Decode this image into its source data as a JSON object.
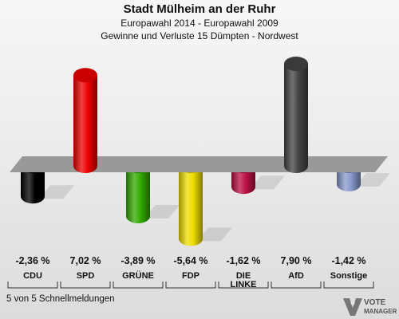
{
  "header": {
    "title": "Stadt Mülheim an der Ruhr",
    "subtitle1": "Europawahl 2014 - Europawahl 2009",
    "subtitle2": "Gewinne und Verluste 15 Dümpten - Nordwest"
  },
  "footer": {
    "text": "5 von 5 Schnellmeldungen"
  },
  "logo": {
    "line1": "VOTE",
    "line2": "MANAGER"
  },
  "chart_data": {
    "type": "bar",
    "title": "Stadt Mülheim an der Ruhr",
    "subtitle": "Europawahl 2014 - Europawahl 2009 / Gewinne und Verluste 15 Dümpten - Nordwest",
    "categories": [
      "CDU",
      "SPD",
      "GRÜNE",
      "FDP",
      "DIE LINKE",
      "AfD",
      "Sonstige"
    ],
    "values": [
      -2.36,
      7.02,
      -3.89,
      -5.64,
      -1.62,
      7.9,
      -1.42
    ],
    "value_labels": [
      "-2,36 %",
      "7,02 %",
      "-3,89 %",
      "-5,64 %",
      "-1,62 %",
      "7,90 %",
      "-1,42 %"
    ],
    "colors": [
      "#000000",
      "#ee0000",
      "#33aa00",
      "#eedd00",
      "#bb1144",
      "#444444",
      "#8899cc"
    ],
    "xlabel": "",
    "ylabel": "",
    "grid": false,
    "legend": "none"
  }
}
